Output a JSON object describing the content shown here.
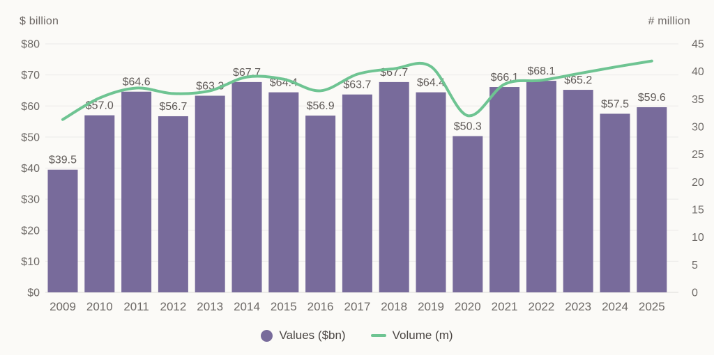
{
  "chart_data": {
    "type": "combo",
    "categories": [
      "2009",
      "2010",
      "2011",
      "2012",
      "2013",
      "2014",
      "2015",
      "2016",
      "2017",
      "2018",
      "2019",
      "2020",
      "2021",
      "2022",
      "2023",
      "2024",
      "2025"
    ],
    "series": [
      {
        "name": "Values ($bn)",
        "type": "bar",
        "axis": "left",
        "values": [
          39.5,
          57.0,
          64.6,
          56.7,
          63.3,
          67.7,
          64.4,
          56.9,
          63.7,
          67.7,
          64.4,
          50.3,
          66.1,
          68.1,
          65.2,
          57.5,
          59.6
        ],
        "labels": [
          "$39.5",
          "$57.0",
          "$64.6",
          "$56.7",
          "$63.3",
          "$67.7",
          "$64.4",
          "$56.9",
          "$63.7",
          "$67.7",
          "$64.4",
          "$50.3",
          "$66.1",
          "$68.1",
          "$65.2",
          "$57.5",
          "$59.6"
        ]
      },
      {
        "name": "Volume (m)",
        "type": "line",
        "axis": "right",
        "values": [
          31.3,
          35.2,
          37.0,
          36.0,
          36.5,
          39.0,
          38.6,
          36.5,
          39.5,
          40.5,
          40.9,
          32.0,
          37.7,
          38.4,
          39.6,
          40.8,
          41.9
        ]
      }
    ],
    "left_axis": {
      "label": "$ billion",
      "min": 0,
      "max": 80,
      "tick_step": 10,
      "tick_labels": [
        "$0",
        "$10",
        "$20",
        "$30",
        "$40",
        "$50",
        "$60",
        "$70",
        "$80"
      ]
    },
    "right_axis": {
      "label": "# million",
      "min": 0,
      "max": 45,
      "tick_step": 5,
      "tick_labels": [
        "0",
        "5",
        "10",
        "15",
        "20",
        "25",
        "30",
        "35",
        "40",
        "45"
      ]
    },
    "legend": [
      {
        "label": "Values ($bn)",
        "marker": "circle",
        "color": "#786b9b"
      },
      {
        "label": "Volume (m)",
        "marker": "line",
        "color": "#6ec492"
      }
    ],
    "grid": "horizontal",
    "legend_position": "bottom"
  },
  "colors": {
    "background": "#fbfaf7",
    "bar": "#786b9b",
    "line": "#6ec492",
    "grid": "#eeedeb",
    "grid_zero": "#e4e2df",
    "tick_text": "#6f6b68",
    "value_label_text": "#5f5a57",
    "category_text": "#6d6966",
    "axis_title_text": "#6b6663",
    "legend_text": "#4a4542"
  }
}
